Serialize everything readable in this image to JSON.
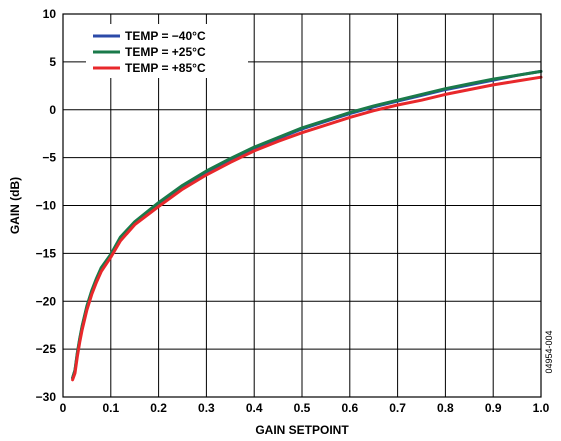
{
  "chart_data": {
    "type": "line",
    "xlabel": "GAIN SETPOINT",
    "ylabel": "GAIN (dB)",
    "xlim": [
      0,
      1.0
    ],
    "ylim": [
      -30,
      10
    ],
    "x_ticks": [
      "0",
      "0.1",
      "0.2",
      "0.3",
      "0.4",
      "0.5",
      "0.6",
      "0.7",
      "0.8",
      "0.9",
      "1.0"
    ],
    "y_ticks": [
      "10",
      "5",
      "0",
      "−5",
      "−10",
      "−15",
      "−20",
      "−25",
      "−30"
    ],
    "grid": true,
    "legend_position": "top-left",
    "series": [
      {
        "name": "TEMP = −40°C",
        "color": "#2b4aa8",
        "x": [
          0.02,
          0.025,
          0.03,
          0.035,
          0.04,
          0.05,
          0.06,
          0.07,
          0.08,
          0.1,
          0.12,
          0.15,
          0.2,
          0.25,
          0.3,
          0.35,
          0.4,
          0.45,
          0.5,
          0.55,
          0.6,
          0.65,
          0.7,
          0.75,
          0.8,
          0.85,
          0.9,
          0.95,
          1.0
        ],
        "y": [
          -28.0,
          -27.2,
          -25.5,
          -24.0,
          -22.7,
          -20.6,
          -19.0,
          -17.7,
          -16.6,
          -15.2,
          -13.4,
          -11.8,
          -9.8,
          -8.0,
          -6.5,
          -5.2,
          -4.0,
          -3.0,
          -2.0,
          -1.2,
          -0.4,
          0.3,
          0.9,
          1.5,
          2.1,
          2.6,
          3.1,
          3.6,
          4.0
        ]
      },
      {
        "name": "TEMP = +25°C",
        "color": "#1a7a4a",
        "x": [
          0.02,
          0.025,
          0.03,
          0.035,
          0.04,
          0.05,
          0.06,
          0.07,
          0.08,
          0.1,
          0.12,
          0.15,
          0.2,
          0.25,
          0.3,
          0.35,
          0.4,
          0.45,
          0.5,
          0.55,
          0.6,
          0.65,
          0.7,
          0.75,
          0.8,
          0.85,
          0.9,
          0.95,
          1.0
        ],
        "y": [
          -28.0,
          -27.2,
          -25.4,
          -23.9,
          -22.6,
          -20.5,
          -18.9,
          -17.6,
          -16.5,
          -15.1,
          -13.3,
          -11.7,
          -9.7,
          -7.9,
          -6.4,
          -5.1,
          -3.9,
          -2.9,
          -1.9,
          -1.1,
          -0.3,
          0.4,
          1.0,
          1.6,
          2.2,
          2.7,
          3.2,
          3.6,
          4.0
        ]
      },
      {
        "name": "TEMP = +85°C",
        "color": "#e8282b",
        "x": [
          0.02,
          0.025,
          0.03,
          0.035,
          0.04,
          0.05,
          0.06,
          0.07,
          0.08,
          0.1,
          0.12,
          0.15,
          0.2,
          0.25,
          0.3,
          0.35,
          0.4,
          0.45,
          0.5,
          0.55,
          0.6,
          0.65,
          0.7,
          0.75,
          0.8,
          0.85,
          0.9,
          0.95,
          1.0
        ],
        "y": [
          -28.2,
          -27.5,
          -25.8,
          -24.3,
          -23.0,
          -20.9,
          -19.3,
          -18.0,
          -16.9,
          -15.4,
          -13.7,
          -12.0,
          -10.1,
          -8.3,
          -6.8,
          -5.5,
          -4.3,
          -3.3,
          -2.4,
          -1.6,
          -0.8,
          -0.1,
          0.5,
          1.0,
          1.6,
          2.1,
          2.6,
          3.0,
          3.4
        ]
      }
    ],
    "figure_code": "04954-004"
  }
}
